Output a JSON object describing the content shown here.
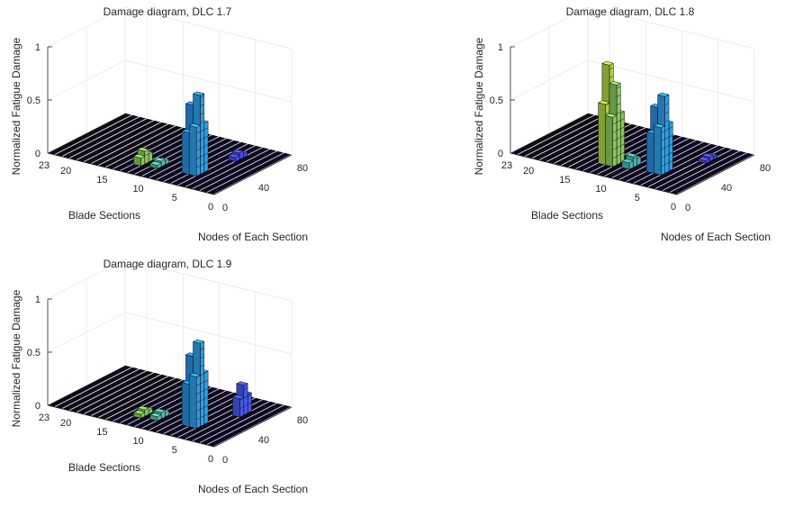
{
  "chart_data": [
    {
      "type": "bar3d",
      "title": "Damage diagram, DLC 1.7",
      "xlabel": "Blade Sections",
      "ylabel": "Nodes of Each Section",
      "zlabel": "Normalized Fatigue Damage",
      "xticks": [
        "0",
        "5",
        "10",
        "15",
        "20",
        "23"
      ],
      "yticks": [
        "0",
        "40",
        "80"
      ],
      "zticks": [
        "0",
        "0.5",
        "1"
      ],
      "zlim": [
        0,
        1
      ],
      "peaks": [
        {
          "section": 6,
          "node": 25,
          "value": 0.74,
          "color": "#33a6f0"
        },
        {
          "section": 7,
          "node": 25,
          "value": 0.63,
          "color": "#2b93e8"
        },
        {
          "section": 11,
          "node": 22,
          "value": 0.05,
          "color": "#61c5a8"
        },
        {
          "section": 13,
          "node": 20,
          "value": 0.12,
          "color": "#8fd35c"
        },
        {
          "section": 5,
          "node": 58,
          "value": 0.06,
          "color": "#4c52f0"
        }
      ]
    },
    {
      "type": "bar3d",
      "title": "Damage diagram, DLC 1.8",
      "xlabel": "Blade Sections",
      "ylabel": "Nodes of Each Section",
      "zlabel": "Normalized Fatigue Damage",
      "xticks": [
        "0",
        "5",
        "10",
        "15",
        "20",
        "23"
      ],
      "yticks": [
        "0",
        "40",
        "80"
      ],
      "zticks": [
        "0",
        "0.5",
        "1"
      ],
      "zlim": [
        0,
        1
      ],
      "peaks": [
        {
          "section": 13,
          "node": 22,
          "value": 0.92,
          "color": "#b5dc4a"
        },
        {
          "section": 12,
          "node": 22,
          "value": 0.75,
          "color": "#8fd35c"
        },
        {
          "section": 6,
          "node": 27,
          "value": 0.72,
          "color": "#33a6f0"
        },
        {
          "section": 7,
          "node": 27,
          "value": 0.6,
          "color": "#2b93e8"
        },
        {
          "section": 10,
          "node": 24,
          "value": 0.1,
          "color": "#4fbfb6"
        },
        {
          "section": 4,
          "node": 58,
          "value": 0.04,
          "color": "#4c52f0"
        }
      ]
    },
    {
      "type": "bar3d",
      "title": "Damage diagram, DLC 1.9",
      "xlabel": "Blade Sections",
      "ylabel": "Nodes of Each Section",
      "zlabel": "Normalized Fatigue Damage",
      "xticks": [
        "0",
        "5",
        "10",
        "15",
        "20",
        "23"
      ],
      "yticks": [
        "0",
        "40",
        "80"
      ],
      "zticks": [
        "0",
        "0.5",
        "1"
      ],
      "zlim": [
        0,
        1
      ],
      "peaks": [
        {
          "section": 6,
          "node": 25,
          "value": 0.78,
          "color": "#33a6f0"
        },
        {
          "section": 7,
          "node": 25,
          "value": 0.64,
          "color": "#2b93e8"
        },
        {
          "section": 4,
          "node": 55,
          "value": 0.28,
          "color": "#4a5df2"
        },
        {
          "section": 11,
          "node": 22,
          "value": 0.06,
          "color": "#61c5a8"
        },
        {
          "section": 13,
          "node": 20,
          "value": 0.06,
          "color": "#8fd35c"
        }
      ]
    }
  ]
}
